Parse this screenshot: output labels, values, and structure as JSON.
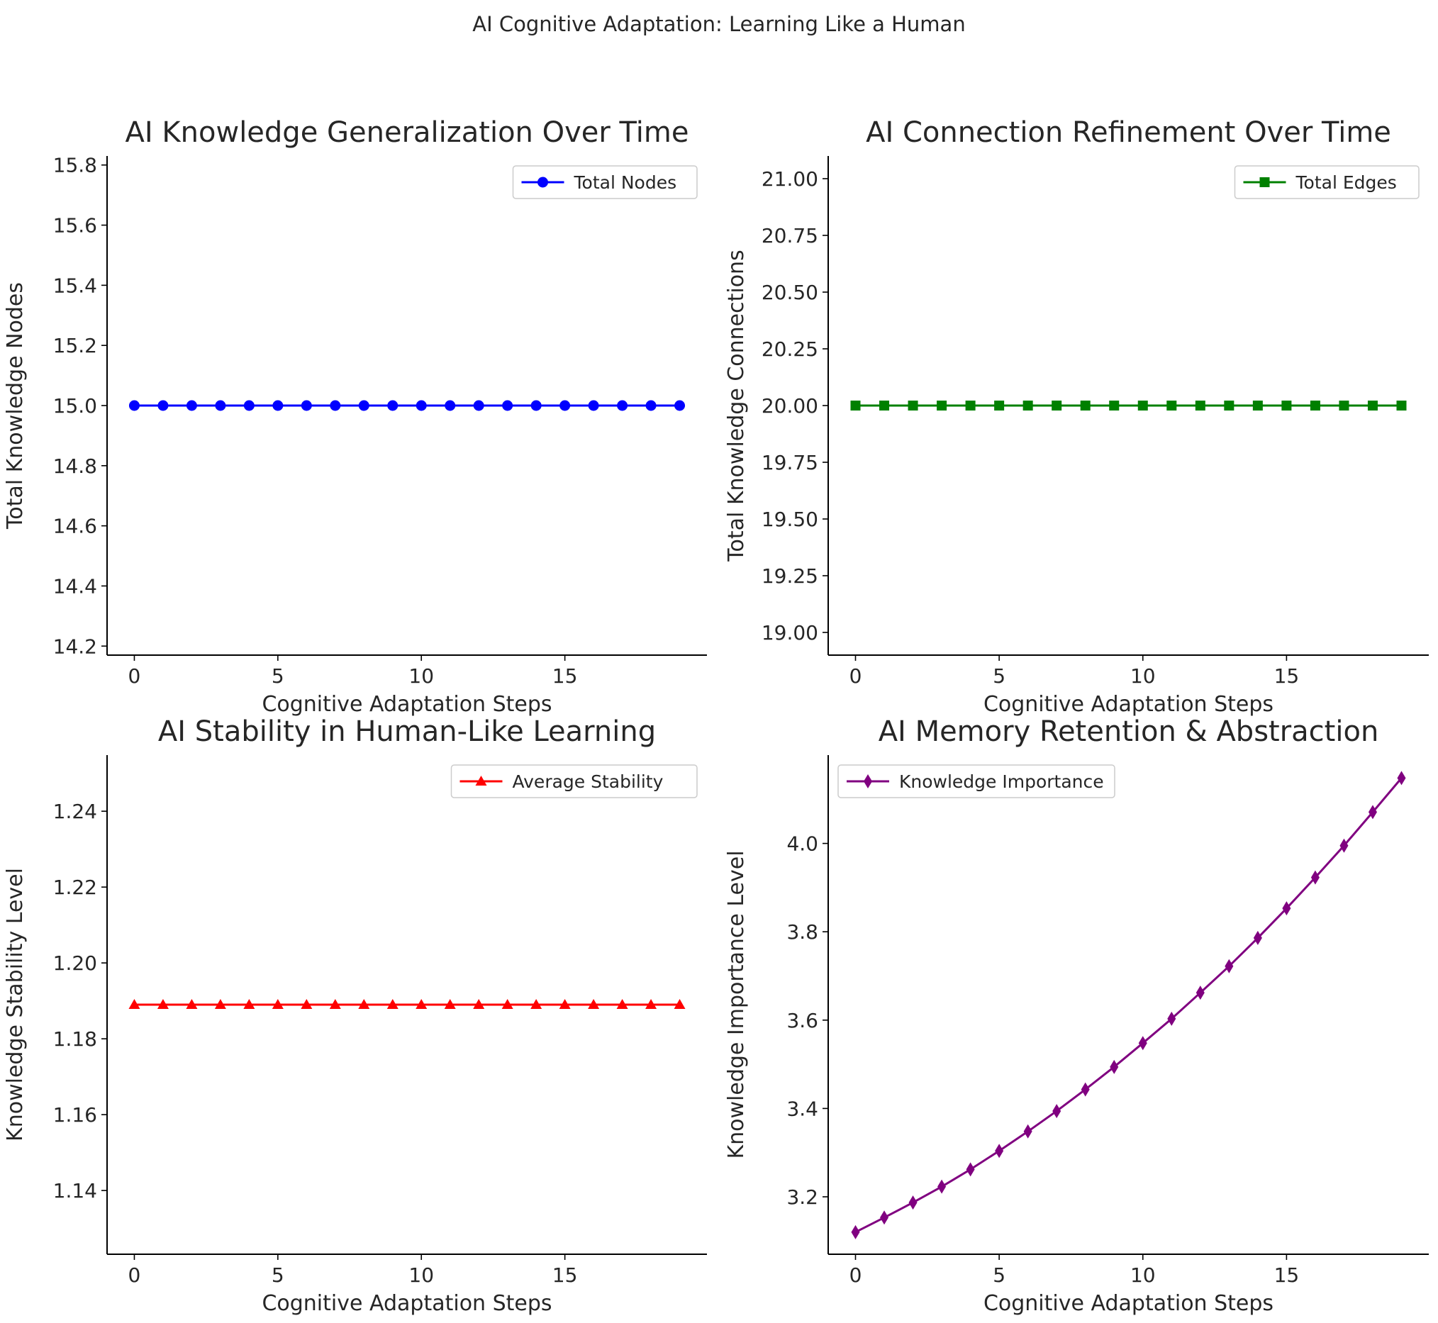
{
  "figure": {
    "suptitle": "AI Cognitive Adaptation: Learning Like a Human"
  },
  "chart_data": [
    {
      "type": "line",
      "title": "AI Knowledge Generalization Over Time",
      "xlabel": "Cognitive Adaptation Steps",
      "ylabel": "Total Knowledge Nodes",
      "xlim": [
        -0.95,
        19.95
      ],
      "ylim": [
        14.17,
        15.83
      ],
      "xticks": [
        0,
        5,
        10,
        15
      ],
      "xtick_labels": [
        "0",
        "5",
        "10",
        "15"
      ],
      "yticks": [
        14.2,
        14.4,
        14.6,
        14.8,
        15.0,
        15.2,
        15.4,
        15.6,
        15.8
      ],
      "ytick_labels": [
        "14.2",
        "14.4",
        "14.6",
        "14.8",
        "15.0",
        "15.2",
        "15.4",
        "15.6",
        "15.8"
      ],
      "grid": false,
      "legend_position": "upper right",
      "series": [
        {
          "name": "Total Nodes",
          "color": "#0000ff",
          "marker": "circle",
          "x": [
            0,
            1,
            2,
            3,
            4,
            5,
            6,
            7,
            8,
            9,
            10,
            11,
            12,
            13,
            14,
            15,
            16,
            17,
            18,
            19
          ],
          "values": [
            15,
            15,
            15,
            15,
            15,
            15,
            15,
            15,
            15,
            15,
            15,
            15,
            15,
            15,
            15,
            15,
            15,
            15,
            15,
            15
          ]
        }
      ]
    },
    {
      "type": "line",
      "title": "AI Connection Refinement Over Time",
      "xlabel": "Cognitive Adaptation Steps",
      "ylabel": "Total Knowledge Connections",
      "xlim": [
        -0.95,
        19.95
      ],
      "ylim": [
        18.9,
        21.1
      ],
      "xticks": [
        0,
        5,
        10,
        15
      ],
      "xtick_labels": [
        "0",
        "5",
        "10",
        "15"
      ],
      "yticks": [
        19.0,
        19.25,
        19.5,
        19.75,
        20.0,
        20.25,
        20.5,
        20.75,
        21.0
      ],
      "ytick_labels": [
        "19.00",
        "19.25",
        "19.50",
        "19.75",
        "20.00",
        "20.25",
        "20.50",
        "20.75",
        "21.00"
      ],
      "grid": false,
      "legend_position": "upper right",
      "series": [
        {
          "name": "Total Edges",
          "color": "#008000",
          "marker": "square",
          "x": [
            0,
            1,
            2,
            3,
            4,
            5,
            6,
            7,
            8,
            9,
            10,
            11,
            12,
            13,
            14,
            15,
            16,
            17,
            18,
            19
          ],
          "values": [
            20,
            20,
            20,
            20,
            20,
            20,
            20,
            20,
            20,
            20,
            20,
            20,
            20,
            20,
            20,
            20,
            20,
            20,
            20,
            20
          ]
        }
      ]
    },
    {
      "type": "line",
      "title": "AI Stability in Human-Like Learning",
      "xlabel": "Cognitive Adaptation Steps",
      "ylabel": "Knowledge Stability Level",
      "xlim": [
        -0.95,
        19.95
      ],
      "ylim": [
        1.1232,
        1.2548
      ],
      "xticks": [
        0,
        5,
        10,
        15
      ],
      "xtick_labels": [
        "0",
        "5",
        "10",
        "15"
      ],
      "yticks": [
        1.14,
        1.16,
        1.18,
        1.2,
        1.22,
        1.24
      ],
      "ytick_labels": [
        "1.14",
        "1.16",
        "1.18",
        "1.20",
        "1.22",
        "1.24"
      ],
      "grid": false,
      "legend_position": "upper right",
      "series": [
        {
          "name": "Average Stability",
          "color": "#ff0000",
          "marker": "triangle",
          "x": [
            0,
            1,
            2,
            3,
            4,
            5,
            6,
            7,
            8,
            9,
            10,
            11,
            12,
            13,
            14,
            15,
            16,
            17,
            18,
            19
          ],
          "values": [
            1.189,
            1.189,
            1.189,
            1.189,
            1.189,
            1.189,
            1.189,
            1.189,
            1.189,
            1.189,
            1.189,
            1.189,
            1.189,
            1.189,
            1.189,
            1.189,
            1.189,
            1.189,
            1.189,
            1.189
          ]
        }
      ]
    },
    {
      "type": "line",
      "title": "AI Memory Retention & Abstraction",
      "xlabel": "Cognitive Adaptation Steps",
      "ylabel": "Knowledge Importance Level",
      "xlim": [
        -0.95,
        19.95
      ],
      "ylim": [
        3.07,
        4.2
      ],
      "xticks": [
        0,
        5,
        10,
        15
      ],
      "xtick_labels": [
        "0",
        "5",
        "10",
        "15"
      ],
      "yticks": [
        3.2,
        3.4,
        3.6,
        3.8,
        4.0
      ],
      "ytick_labels": [
        "3.2",
        "3.4",
        "3.6",
        "3.8",
        "4.0"
      ],
      "grid": false,
      "legend_position": "upper left",
      "series": [
        {
          "name": "Knowledge Importance",
          "color": "#800080",
          "marker": "diamond",
          "x": [
            0,
            1,
            2,
            3,
            4,
            5,
            6,
            7,
            8,
            9,
            10,
            11,
            12,
            13,
            14,
            15,
            16,
            17,
            18,
            19
          ],
          "values": [
            3.12,
            3.153,
            3.187,
            3.223,
            3.262,
            3.304,
            3.348,
            3.394,
            3.443,
            3.494,
            3.548,
            3.603,
            3.662,
            3.722,
            3.786,
            3.853,
            3.923,
            3.995,
            4.071,
            4.148
          ]
        }
      ]
    }
  ]
}
